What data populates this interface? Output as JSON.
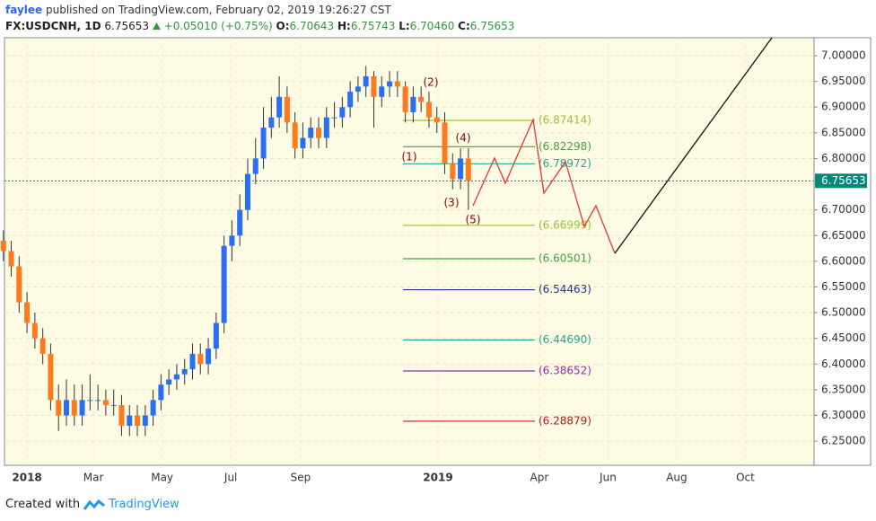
{
  "header": {
    "publisher": "faylee",
    "published_text": "published on TradingView.com, February 02, 2019 19:26:27 CST"
  },
  "symbol": {
    "name": "FX:USDCNH, 1D",
    "price": "6.75653",
    "change": "+0.05010 (+0.75%)",
    "o_label": "O:",
    "o": "6.70643",
    "h_label": "H:",
    "h": "6.75743",
    "l_label": "L:",
    "l": "6.70460",
    "c_label": "C:",
    "c": "6.75653"
  },
  "chart_data": {
    "type": "candlestick",
    "up_color": "#2a6ef5",
    "down_color": "#ff7a1f",
    "wick_color": "#333333",
    "x": [
      "2017-12-11",
      "2017-12-18",
      "2017-12-25",
      "2018-01-01",
      "2018-01-08",
      "2018-01-15",
      "2018-01-22",
      "2018-01-29",
      "2018-02-05",
      "2018-02-12",
      "2018-02-19",
      "2018-02-26",
      "2018-03-05",
      "2018-03-12",
      "2018-03-19",
      "2018-03-26",
      "2018-04-02",
      "2018-04-09",
      "2018-04-16",
      "2018-04-23",
      "2018-04-30",
      "2018-05-07",
      "2018-05-14",
      "2018-05-21",
      "2018-05-28",
      "2018-06-04",
      "2018-06-11",
      "2018-06-18",
      "2018-06-25",
      "2018-07-02",
      "2018-07-09",
      "2018-07-16",
      "2018-07-23",
      "2018-07-30",
      "2018-08-06",
      "2018-08-13",
      "2018-08-20",
      "2018-08-27",
      "2018-09-03",
      "2018-09-10",
      "2018-09-17",
      "2018-09-24",
      "2018-10-01",
      "2018-10-08",
      "2018-10-15",
      "2018-10-22",
      "2018-10-29",
      "2018-11-05",
      "2018-11-12",
      "2018-11-19",
      "2018-11-26",
      "2018-12-03",
      "2018-12-10",
      "2018-12-17",
      "2018-12-24",
      "2018-12-31",
      "2019-01-07",
      "2019-01-14",
      "2019-01-21",
      "2019-01-28"
    ],
    "open": [
      6.64,
      6.62,
      6.59,
      6.52,
      6.48,
      6.45,
      6.42,
      6.33,
      6.3,
      6.33,
      6.3,
      6.33,
      6.33,
      6.33,
      6.32,
      6.32,
      6.28,
      6.3,
      6.28,
      6.3,
      6.33,
      6.36,
      6.37,
      6.38,
      6.39,
      6.42,
      6.4,
      6.43,
      6.48,
      6.63,
      6.65,
      6.7,
      6.77,
      6.8,
      6.86,
      6.88,
      6.92,
      6.87,
      6.82,
      6.84,
      6.86,
      6.84,
      6.88,
      6.88,
      6.9,
      6.93,
      6.94,
      6.96,
      6.92,
      6.94,
      6.95,
      6.94,
      6.89,
      6.92,
      6.91,
      6.88,
      6.87,
      6.79,
      6.76,
      6.8
    ],
    "high": [
      6.66,
      6.64,
      6.61,
      6.54,
      6.5,
      6.47,
      6.44,
      6.36,
      6.37,
      6.36,
      6.36,
      6.38,
      6.36,
      6.35,
      6.35,
      6.34,
      6.32,
      6.32,
      6.32,
      6.35,
      6.38,
      6.39,
      6.4,
      6.41,
      6.44,
      6.44,
      6.45,
      6.5,
      6.65,
      6.68,
      6.73,
      6.8,
      6.84,
      6.9,
      6.92,
      6.96,
      6.94,
      6.89,
      6.87,
      6.88,
      6.88,
      6.9,
      6.91,
      6.92,
      6.95,
      6.96,
      6.98,
      6.97,
      6.96,
      6.97,
      6.97,
      6.95,
      6.94,
      6.94,
      6.93,
      6.9,
      6.89,
      6.81,
      6.82,
      6.82
    ],
    "low": [
      6.6,
      6.57,
      6.5,
      6.46,
      6.43,
      6.4,
      6.31,
      6.27,
      6.28,
      6.28,
      6.28,
      6.31,
      6.31,
      6.3,
      6.3,
      6.26,
      6.26,
      6.26,
      6.26,
      6.28,
      6.31,
      6.34,
      6.35,
      6.36,
      6.37,
      6.38,
      6.38,
      6.41,
      6.46,
      6.6,
      6.63,
      6.68,
      6.75,
      6.78,
      6.84,
      6.86,
      6.85,
      6.8,
      6.8,
      6.82,
      6.82,
      6.82,
      6.86,
      6.86,
      6.88,
      6.91,
      6.92,
      6.86,
      6.9,
      6.92,
      6.92,
      6.87,
      6.87,
      6.89,
      6.86,
      6.85,
      6.77,
      6.74,
      6.74,
      6.7
    ],
    "close": [
      6.62,
      6.59,
      6.52,
      6.48,
      6.45,
      6.42,
      6.33,
      6.3,
      6.33,
      6.3,
      6.33,
      6.33,
      6.33,
      6.32,
      6.32,
      6.28,
      6.3,
      6.28,
      6.3,
      6.33,
      6.36,
      6.37,
      6.38,
      6.39,
      6.42,
      6.4,
      6.43,
      6.48,
      6.63,
      6.65,
      6.7,
      6.77,
      6.8,
      6.86,
      6.88,
      6.92,
      6.87,
      6.82,
      6.84,
      6.86,
      6.84,
      6.88,
      6.88,
      6.9,
      6.93,
      6.94,
      6.96,
      6.92,
      6.94,
      6.95,
      6.94,
      6.89,
      6.92,
      6.91,
      6.88,
      6.87,
      6.79,
      6.76,
      6.8,
      6.75653
    ],
    "xlim": [
      "2017-12-12",
      "2019-12-01"
    ],
    "xticks": [
      {
        "value": "2018-01-01",
        "label": "2018"
      },
      {
        "value": "2018-03-01",
        "label": "Mar"
      },
      {
        "value": "2018-05-01",
        "label": "May"
      },
      {
        "value": "2018-07-01",
        "label": "Jul"
      },
      {
        "value": "2018-09-01",
        "label": "Sep"
      },
      {
        "value": "2019-01-01",
        "label": "2019"
      },
      {
        "value": "2019-04-01",
        "label": "Apr"
      },
      {
        "value": "2019-06-01",
        "label": "Jun"
      },
      {
        "value": "2019-08-01",
        "label": "Aug"
      },
      {
        "value": "2019-10-01",
        "label": "Oct"
      }
    ],
    "ylim": [
      6.203,
      7.035
    ],
    "yticks": [
      {
        "value": 6.25,
        "label": "6.25000"
      },
      {
        "value": 6.3,
        "label": "6.30000"
      },
      {
        "value": 6.35,
        "label": "6.35000"
      },
      {
        "value": 6.4,
        "label": "6.40000"
      },
      {
        "value": 6.45,
        "label": "6.45000"
      },
      {
        "value": 6.5,
        "label": "6.50000"
      },
      {
        "value": 6.55,
        "label": "6.55000"
      },
      {
        "value": 6.6,
        "label": "6.60000"
      },
      {
        "value": 6.65,
        "label": "6.65000"
      },
      {
        "value": 6.7,
        "label": "6.70000"
      },
      {
        "value": 6.75,
        "label": "6.75000"
      },
      {
        "value": 6.8,
        "label": "6.80000"
      },
      {
        "value": 6.85,
        "label": "6.85000"
      },
      {
        "value": 6.9,
        "label": "6.90000"
      },
      {
        "value": 6.95,
        "label": "6.95000"
      },
      {
        "value": 7,
        "label": "7.00000"
      }
    ],
    "grid": true,
    "levels": [
      {
        "value": 6.87414,
        "label": "(6.87414)",
        "color": "#9cbf3a"
      },
      {
        "value": 6.82298,
        "label": "(6.82298)",
        "color": "#43a047"
      },
      {
        "value": 6.78972,
        "label": "(6.78972)",
        "color": "#26a69a"
      },
      {
        "value": 6.66999,
        "label": "(6.66999)",
        "color": "#9cbf3a"
      },
      {
        "value": 6.60501,
        "label": "(6.60501)",
        "color": "#43a047"
      },
      {
        "value": 6.54463,
        "label": "(6.54463)",
        "color": "#283593"
      },
      {
        "value": 6.4469,
        "label": "(6.44690)",
        "color": "#26a69a"
      },
      {
        "value": 6.38652,
        "label": "(6.38652)",
        "color": "#9c27b0"
      },
      {
        "value": 6.28879,
        "label": "(6.28879)",
        "color": "#b71c1c"
      }
    ],
    "last_price": {
      "value": 6.75653,
      "label": "6.75653",
      "color": "#00897b"
    },
    "wave_labels": [
      "(1)",
      "(2)",
      "(3)",
      "(4)",
      "(5)"
    ]
  },
  "footer": {
    "created_with": "Created with",
    "brand": "TradingView"
  }
}
